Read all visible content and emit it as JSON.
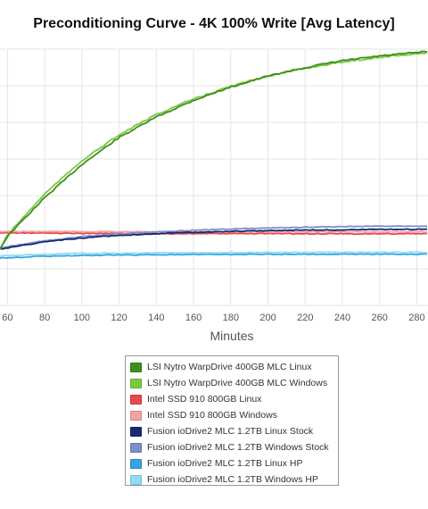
{
  "chart_data": {
    "type": "line",
    "title": "Preconditioning Curve - 4K 100% Write [Avg Latency]",
    "xlabel": "Minutes",
    "x_ticks": [
      60,
      80,
      100,
      120,
      140,
      160,
      180,
      200,
      220,
      240,
      260,
      280
    ],
    "xlim": [
      56,
      286
    ],
    "ylim": [
      0,
      100
    ],
    "grid": true,
    "legend_position": "bottom",
    "series": [
      {
        "name": "LSI Nytro WarpDrive 400GB MLC Linux",
        "color": "#3d8f1c",
        "x": [
          56,
          60,
          80,
          100,
          120,
          140,
          160,
          180,
          200,
          220,
          240,
          260,
          280,
          286
        ],
        "y": [
          22.0,
          27.0,
          42.0,
          55.0,
          65.5,
          73.5,
          80.0,
          85.2,
          89.5,
          92.8,
          95.5,
          97.3,
          98.7,
          99.0
        ]
      },
      {
        "name": "LSI Nytro WarpDrive 400GB MLC Windows",
        "color": "#7ac943",
        "x": [
          56,
          60,
          80,
          100,
          120,
          140,
          160,
          180,
          200,
          220,
          240,
          260,
          280,
          286
        ],
        "y": [
          22.0,
          27.5,
          43.5,
          56.5,
          66.5,
          74.5,
          80.5,
          85.5,
          89.5,
          92.5,
          95.0,
          96.8,
          98.2,
          98.5
        ]
      },
      {
        "name": "Intel SSD 910 800GB Linux",
        "color": "#e8474c",
        "x": [
          56,
          100,
          150,
          200,
          250,
          286
        ],
        "y": [
          28.3,
          28.1,
          28.0,
          28.0,
          27.9,
          28.0
        ]
      },
      {
        "name": "Intel SSD 910 800GB Windows",
        "color": "#f4a1a4",
        "x": [
          56,
          100,
          150,
          200,
          250,
          286
        ],
        "y": [
          28.8,
          28.8,
          28.7,
          28.7,
          28.7,
          28.7
        ]
      },
      {
        "name": "Fusion ioDrive2 MLC 1.2TB Linux Stock",
        "color": "#142a73",
        "x": [
          56,
          80,
          100,
          120,
          140,
          160,
          180,
          200,
          220,
          240,
          260,
          280,
          286
        ],
        "y": [
          22.0,
          24.8,
          26.3,
          27.3,
          28.0,
          28.5,
          28.9,
          29.2,
          29.4,
          29.5,
          29.6,
          29.7,
          29.7
        ]
      },
      {
        "name": "Fusion ioDrive2 MLC 1.2TB Windows Stock",
        "color": "#7e8ec9",
        "x": [
          56,
          80,
          100,
          120,
          140,
          160,
          180,
          200,
          220,
          240,
          260,
          280,
          286
        ],
        "y": [
          22.5,
          25.2,
          26.8,
          27.9,
          28.7,
          29.3,
          29.8,
          30.2,
          30.5,
          30.7,
          30.9,
          31.0,
          31.0
        ]
      },
      {
        "name": "Fusion ioDrive2 MLC 1.2TB Linux HP",
        "color": "#36a4e0",
        "x": [
          56,
          80,
          100,
          140,
          180,
          220,
          260,
          286
        ],
        "y": [
          18.5,
          19.2,
          19.5,
          19.8,
          19.9,
          20.0,
          20.0,
          20.0
        ]
      },
      {
        "name": "Fusion ioDrive2 MLC 1.2TB Windows HP",
        "color": "#8fdbf5",
        "x": [
          56,
          80,
          100,
          140,
          180,
          220,
          260,
          286
        ],
        "y": [
          19.3,
          20.0,
          20.3,
          20.5,
          20.6,
          20.7,
          20.7,
          20.7
        ]
      }
    ]
  }
}
